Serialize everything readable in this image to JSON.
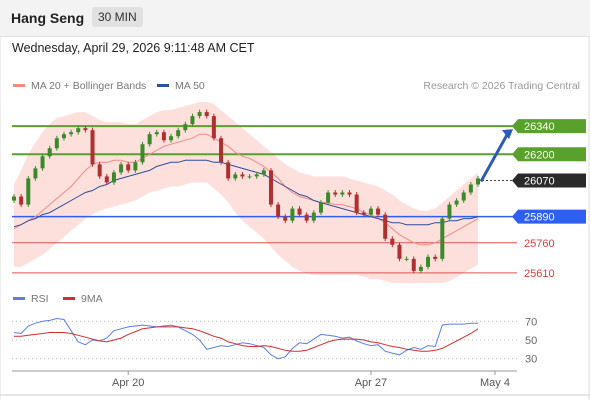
{
  "header": {
    "title": "Hang Seng",
    "timeframe": "30 MIN"
  },
  "timestamp": "Wednesday, April 29, 2026 9:11:48 AM CET",
  "legend": {
    "ma20": {
      "label": "MA 20 + Bollinger Bands",
      "color": "#f28b82"
    },
    "ma50": {
      "label": "MA 50",
      "color": "#2c4f9e"
    }
  },
  "credit": "Research © 2026 Trading Central",
  "rsi_legend": {
    "rsi": {
      "label": "RSI",
      "color": "#5b7fe0"
    },
    "ma9": {
      "label": "9MA",
      "color": "#d32f2f"
    }
  },
  "chart_data": [
    {
      "type": "candlestick",
      "title": "Hang Seng",
      "x_tick_labels": [
        "Apr 20",
        "Apr 27",
        "May 4"
      ],
      "ylim": [
        25550,
        26480
      ],
      "levels": [
        {
          "value": 26340,
          "label": "26340",
          "kind": "resistance",
          "color": "#5aa02c"
        },
        {
          "value": 26200,
          "label": "26200",
          "kind": "resistance",
          "color": "#5aa02c"
        },
        {
          "value": 26070,
          "label": "26070",
          "kind": "last",
          "color": "#333333"
        },
        {
          "value": 25890,
          "label": "25890",
          "kind": "pivot",
          "color": "#2e5ff0"
        },
        {
          "value": 25760,
          "label": "25760",
          "kind": "support",
          "color": "#e05555"
        },
        {
          "value": 25610,
          "label": "25610",
          "kind": "support",
          "color": "#e05555"
        }
      ],
      "forecast_arrow": {
        "from": 26070,
        "to": 26340,
        "direction": "up"
      },
      "close": [
        25990,
        25950,
        26080,
        26130,
        26190,
        26230,
        26280,
        26300,
        26310,
        26330,
        26320,
        26150,
        26090,
        26060,
        26110,
        26150,
        26120,
        26160,
        26250,
        26300,
        26310,
        26270,
        26290,
        26320,
        26350,
        26390,
        26410,
        26390,
        26280,
        26160,
        26080,
        26100,
        26090,
        26090,
        26100,
        26120,
        25950,
        25890,
        25870,
        25930,
        25900,
        25870,
        25910,
        25960,
        26010,
        26000,
        26010,
        26000,
        25910,
        25900,
        25930,
        25900,
        25780,
        25750,
        25680,
        25680,
        25620,
        25640,
        25690,
        25680,
        25880,
        25950,
        25970,
        26010,
        26050,
        26080
      ],
      "ma20": [
        25830,
        25850,
        25870,
        25890,
        25920,
        25950,
        25980,
        26010,
        26040,
        26080,
        26120,
        26150,
        26160,
        26160,
        26170,
        26170,
        26160,
        26160,
        26180,
        26200,
        26220,
        26240,
        26250,
        26260,
        26270,
        26280,
        26300,
        26300,
        26280,
        26260,
        26240,
        26210,
        26190,
        26180,
        26160,
        26140,
        26110,
        26080,
        26040,
        26010,
        25990,
        25980,
        25970,
        25960,
        25960,
        25950,
        25950,
        25940,
        25930,
        25910,
        25900,
        25880,
        25860,
        25830,
        25800,
        25780,
        25760,
        25750,
        25750,
        25760,
        25780,
        25800,
        25820,
        25840,
        25860,
        25880
      ],
      "bb_upper": [
        26050,
        26120,
        26200,
        26260,
        26310,
        26350,
        26380,
        26390,
        26400,
        26410,
        26410,
        26390,
        26370,
        26360,
        26360,
        26360,
        26350,
        26350,
        26370,
        26390,
        26410,
        26420,
        26420,
        26430,
        26440,
        26450,
        26460,
        26460,
        26450,
        26420,
        26390,
        26360,
        26330,
        26300,
        26270,
        26240,
        26210,
        26180,
        26150,
        26130,
        26110,
        26100,
        26090,
        26090,
        26090,
        26090,
        26090,
        26080,
        26070,
        26060,
        26050,
        26040,
        26020,
        26000,
        25970,
        25950,
        25930,
        25920,
        25920,
        25930,
        25960,
        25990,
        26020,
        26050,
        26080,
        26110
      ],
      "bb_lower": [
        25640,
        25640,
        25660,
        25680,
        25700,
        25730,
        25760,
        25790,
        25820,
        25850,
        25880,
        25900,
        25920,
        25930,
        25940,
        25950,
        25960,
        25970,
        25990,
        26010,
        26020,
        26030,
        26040,
        26040,
        26050,
        26060,
        26060,
        26060,
        26030,
        26000,
        25960,
        25910,
        25870,
        25840,
        25810,
        25780,
        25740,
        25700,
        25670,
        25640,
        25620,
        25610,
        25600,
        25600,
        25600,
        25600,
        25600,
        25600,
        25600,
        25590,
        25580,
        25580,
        25570,
        25560,
        25560,
        25560,
        25560,
        25560,
        25560,
        25560,
        25560,
        25570,
        25590,
        25610,
        25630,
        25650
      ],
      "ma50": [
        25840,
        25850,
        25870,
        25880,
        25900,
        25910,
        25930,
        25950,
        25970,
        25990,
        26010,
        26020,
        26040,
        26050,
        26070,
        26080,
        26090,
        26100,
        26110,
        26120,
        26140,
        26150,
        26160,
        26160,
        26170,
        26170,
        26170,
        26170,
        26160,
        26160,
        26150,
        26140,
        26130,
        26120,
        26110,
        26100,
        26080,
        26060,
        26040,
        26020,
        26000,
        25990,
        25970,
        25960,
        25950,
        25940,
        25930,
        25920,
        25910,
        25900,
        25890,
        25880,
        25870,
        25860,
        25860,
        25850,
        25850,
        25850,
        25850,
        25860,
        25860,
        25870,
        25870,
        25880,
        25880,
        25890
      ]
    },
    {
      "type": "line",
      "title": "RSI",
      "ylim": [
        20,
        80
      ],
      "y_ticks": [
        "70",
        "50",
        "30"
      ],
      "guide_levels": [
        70,
        50,
        30
      ],
      "x_tick_labels": [
        "Apr 20",
        "Apr 27",
        "May 4"
      ],
      "series": [
        {
          "name": "RSI",
          "color": "#5b7fe0",
          "values": [
            58,
            57,
            65,
            68,
            70,
            71,
            73,
            72,
            60,
            48,
            45,
            50,
            49,
            52,
            60,
            62,
            64,
            65,
            66,
            65,
            64,
            65,
            66,
            64,
            60,
            56,
            50,
            40,
            42,
            44,
            43,
            45,
            47,
            46,
            44,
            42,
            34,
            30,
            32,
            41,
            47,
            46,
            51,
            56,
            55,
            54,
            52,
            53,
            49,
            46,
            44,
            45,
            38,
            36,
            34,
            39,
            42,
            40,
            44,
            43,
            66,
            67,
            67,
            67,
            68,
            68
          ]
        },
        {
          "name": "9MA",
          "color": "#d32f2f",
          "values": [
            54,
            54,
            55,
            56,
            57,
            58,
            58,
            58,
            57,
            55,
            53,
            51,
            49,
            48,
            50,
            52,
            56,
            59,
            62,
            63,
            64,
            64,
            64,
            64,
            63,
            62,
            60,
            57,
            54,
            52,
            48,
            46,
            44,
            43,
            43,
            44,
            43,
            41,
            39,
            38,
            38,
            39,
            42,
            45,
            48,
            50,
            51,
            51,
            51,
            50,
            48,
            47,
            45,
            43,
            42,
            40,
            39,
            38,
            38,
            39,
            41,
            45,
            49,
            53,
            57,
            62
          ]
        }
      ]
    }
  ]
}
